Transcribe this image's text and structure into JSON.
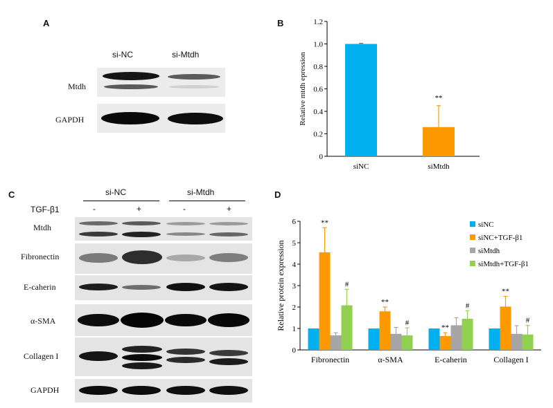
{
  "panels": {
    "a": "A",
    "b": "B",
    "c": "C",
    "d": "D"
  },
  "panel_a": {
    "lanes": [
      "si-NC",
      "si-Mtdh"
    ],
    "rows": [
      "Mtdh",
      "GAPDH"
    ]
  },
  "panel_c": {
    "groups": [
      "si-NC",
      "si-Mtdh"
    ],
    "treatment_label": "TGF-β1",
    "treatment_marks": [
      "-",
      "+",
      "-",
      "+"
    ],
    "rows": [
      "Mtdh",
      "Fibronectin",
      "E-caherin",
      "α-SMA",
      "Collagen I",
      "GAPDH"
    ]
  },
  "chart_data": [
    {
      "id": "B",
      "type": "bar",
      "categories": [
        "siNC",
        "siMtdh"
      ],
      "values": [
        1.0,
        0.26
      ],
      "errors": [
        0.005,
        0.19
      ],
      "significance": [
        "",
        "**"
      ],
      "colors": [
        "#00b0f0",
        "#ff9900"
      ],
      "ylabel": "Relative mtdh epression",
      "ylim": [
        0,
        1.2
      ],
      "yticks": [
        "0",
        "0.2",
        "0.4",
        "0.6",
        "0.8",
        "1.0",
        "1.2"
      ],
      "grid": false
    },
    {
      "id": "D",
      "type": "bar",
      "categories": [
        "Fibronectin",
        "α-SMA",
        "E-caherin",
        "Collagen I"
      ],
      "ylabel": "Relative protein expression",
      "ylim": [
        0,
        6
      ],
      "yticks": [
        "0",
        "1",
        "2",
        "3",
        "4",
        "5",
        "6"
      ],
      "grid": false,
      "legend_position": "top-right",
      "series": [
        {
          "name": "siNC",
          "color": "#00b0f0",
          "values": [
            1.0,
            1.0,
            1.0,
            1.0
          ],
          "errors": [
            0,
            0,
            0,
            0
          ],
          "marks": [
            "",
            "",
            "",
            ""
          ]
        },
        {
          "name": "siNC+TGF-β1",
          "color": "#ff9900",
          "values": [
            4.55,
            1.8,
            0.65,
            2.02
          ],
          "errors": [
            1.15,
            0.2,
            0.15,
            0.48
          ],
          "marks": [
            "**",
            "**",
            "**",
            "**"
          ]
        },
        {
          "name": "siMtdh",
          "color": "#a6a6a6",
          "values": [
            0.68,
            0.75,
            1.15,
            0.75
          ],
          "errors": [
            0.12,
            0.3,
            0.35,
            0.38
          ],
          "marks": [
            "",
            "",
            "",
            ""
          ]
        },
        {
          "name": "siMtdh+TGF-β1",
          "color": "#92d050",
          "values": [
            2.08,
            0.68,
            1.45,
            0.72
          ],
          "errors": [
            0.75,
            0.35,
            0.38,
            0.42
          ],
          "marks": [
            "#",
            "#",
            "#",
            "#"
          ]
        }
      ]
    }
  ]
}
